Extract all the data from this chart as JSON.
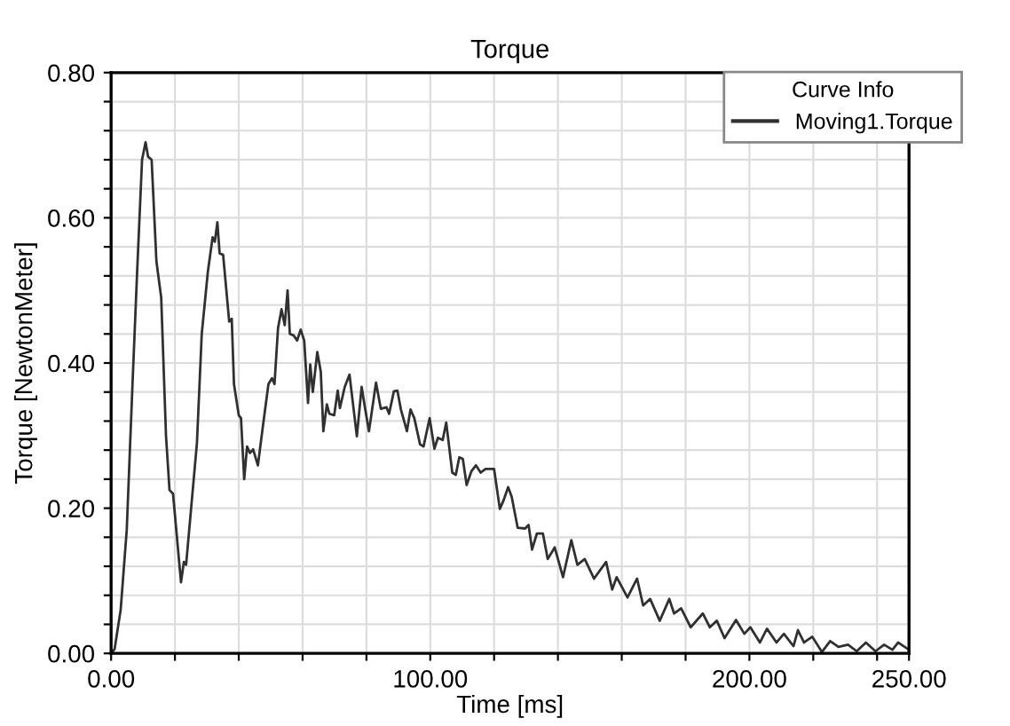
{
  "chart_data": {
    "type": "line",
    "title": "Torque",
    "xlabel": "Time [ms]",
    "ylabel": "Torque [NewtonMeter]",
    "legend_title": "Curve Info",
    "legend": "top right",
    "grid": true,
    "line_style": "solid",
    "xlim": [
      0,
      250
    ],
    "ylim": [
      0,
      0.8
    ],
    "xticks": [
      {
        "value": 0,
        "label": "0.00"
      },
      {
        "value": 20,
        "label": null
      },
      {
        "value": 40,
        "label": null
      },
      {
        "value": 60,
        "label": null
      },
      {
        "value": 80,
        "label": null
      },
      {
        "value": 100,
        "label": "100.00"
      },
      {
        "value": 120,
        "label": null
      },
      {
        "value": 140,
        "label": null
      },
      {
        "value": 160,
        "label": null
      },
      {
        "value": 180,
        "label": null
      },
      {
        "value": 200,
        "label": "200.00"
      },
      {
        "value": 220,
        "label": null
      },
      {
        "value": 240,
        "label": null
      },
      {
        "value": 250,
        "label": "250.00"
      }
    ],
    "yticks": [
      {
        "value": 0,
        "label": "0.00"
      },
      {
        "value": 0.04,
        "label": null
      },
      {
        "value": 0.08,
        "label": null
      },
      {
        "value": 0.12,
        "label": null
      },
      {
        "value": 0.16,
        "label": null
      },
      {
        "value": 0.2,
        "label": "0.20"
      },
      {
        "value": 0.24,
        "label": null
      },
      {
        "value": 0.28,
        "label": null
      },
      {
        "value": 0.32,
        "label": null
      },
      {
        "value": 0.36,
        "label": null
      },
      {
        "value": 0.4,
        "label": "0.40"
      },
      {
        "value": 0.44,
        "label": null
      },
      {
        "value": 0.48,
        "label": null
      },
      {
        "value": 0.52,
        "label": null
      },
      {
        "value": 0.56,
        "label": null
      },
      {
        "value": 0.6,
        "label": "0.60"
      },
      {
        "value": 0.64,
        "label": null
      },
      {
        "value": 0.68,
        "label": null
      },
      {
        "value": 0.72,
        "label": null
      },
      {
        "value": 0.76,
        "label": null
      },
      {
        "value": 0.8,
        "label": "0.80"
      }
    ],
    "series": [
      {
        "name": "Moving1.Torque",
        "color": "#303030",
        "x": [
          0,
          1.1,
          3,
          4.9,
          6.7,
          8.2,
          9.7,
          10.8,
          11.6,
          12.7,
          14.2,
          15.7,
          17.2,
          18.3,
          19.4,
          21.9,
          22.8,
          23.5,
          25.4,
          26.9,
          28.4,
          30.3,
          31.8,
          32.5,
          33.3,
          34,
          35.1,
          37,
          37.8,
          38.5,
          40,
          40.7,
          41.7,
          42.6,
          43.5,
          44.5,
          46,
          47.5,
          49.3,
          50.4,
          51.2,
          52.3,
          53.4,
          54.4,
          55.3,
          56,
          57.2,
          58.3,
          59.4,
          60.5,
          61.7,
          62.4,
          63.2,
          64.6,
          65.7,
          66.5,
          67.6,
          68.4,
          69.9,
          71,
          71.7,
          73.2,
          74.7,
          77,
          78.5,
          79.6,
          80.8,
          83,
          84.5,
          86.3,
          87.1,
          88.6,
          89.7,
          90.8,
          92.7,
          93.8,
          95,
          96.8,
          97.9,
          99.8,
          101.3,
          102.4,
          103.9,
          105,
          106.9,
          108,
          109.1,
          110.2,
          111.4,
          112.9,
          114.3,
          115.8,
          117.3,
          120,
          121.8,
          122.9,
          124.4,
          125.5,
          127.4,
          129.7,
          130.8,
          131.9,
          133.4,
          135.3,
          136.8,
          139,
          141.6,
          144.2,
          146.1,
          148.4,
          151.3,
          155.1,
          157,
          158.4,
          161.8,
          164.8,
          166.7,
          168.9,
          171.9,
          174.9,
          176.4,
          178.6,
          181.6,
          185.4,
          187.6,
          189.8,
          192.2,
          195.8,
          198.4,
          200.3,
          203.3,
          205.5,
          208.5,
          210.8,
          213.8,
          215.2,
          217.1,
          219.7,
          222.7,
          225.3,
          227.9,
          230.9,
          233.6,
          236.5,
          239.5,
          242.2,
          244.8,
          246.6,
          250
        ],
        "values": [
          0,
          0.006,
          0.06,
          0.17,
          0.37,
          0.53,
          0.68,
          0.704,
          0.684,
          0.68,
          0.54,
          0.49,
          0.3,
          0.225,
          0.22,
          0.098,
          0.126,
          0.122,
          0.216,
          0.29,
          0.44,
          0.525,
          0.573,
          0.567,
          0.594,
          0.551,
          0.549,
          0.457,
          0.461,
          0.371,
          0.328,
          0.324,
          0.24,
          0.285,
          0.276,
          0.281,
          0.259,
          0.311,
          0.371,
          0.379,
          0.371,
          0.448,
          0.474,
          0.452,
          0.5,
          0.44,
          0.438,
          0.431,
          0.446,
          0.431,
          0.345,
          0.398,
          0.36,
          0.415,
          0.388,
          0.306,
          0.343,
          0.33,
          0.328,
          0.362,
          0.338,
          0.367,
          0.384,
          0.299,
          0.367,
          0.337,
          0.306,
          0.373,
          0.337,
          0.339,
          0.33,
          0.361,
          0.362,
          0.336,
          0.306,
          0.336,
          0.324,
          0.288,
          0.285,
          0.324,
          0.282,
          0.297,
          0.294,
          0.318,
          0.249,
          0.246,
          0.27,
          0.268,
          0.232,
          0.251,
          0.259,
          0.249,
          0.254,
          0.254,
          0.199,
          0.21,
          0.229,
          0.216,
          0.173,
          0.172,
          0.177,
          0.143,
          0.165,
          0.165,
          0.13,
          0.146,
          0.105,
          0.156,
          0.122,
          0.13,
          0.103,
          0.126,
          0.088,
          0.105,
          0.077,
          0.103,
          0.066,
          0.075,
          0.045,
          0.075,
          0.055,
          0.062,
          0.036,
          0.055,
          0.036,
          0.045,
          0.021,
          0.046,
          0.027,
          0.036,
          0.015,
          0.034,
          0.015,
          0.027,
          0.01,
          0.032,
          0.015,
          0.023,
          0.002,
          0.017,
          0.009,
          0.012,
          0.003,
          0.015,
          0.003,
          0.012,
          0.005,
          0.015,
          0.005
        ]
      }
    ]
  }
}
